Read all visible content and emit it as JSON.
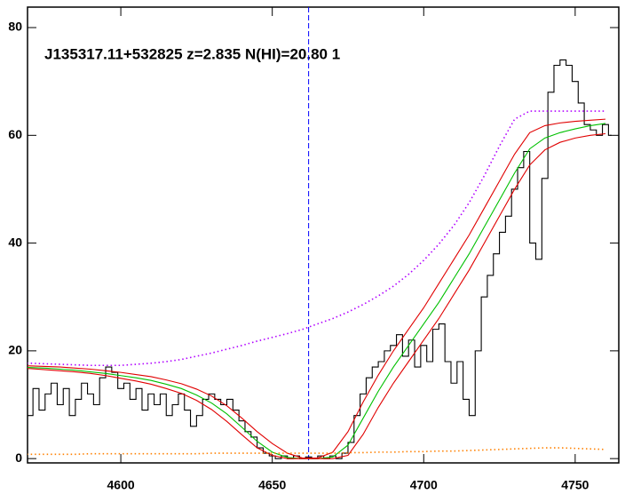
{
  "chart_data": {
    "type": "line",
    "title": "J135317.11+532825 z=2.835 N(HI)=20.80 1",
    "xlim": [
      4569.2,
      4764.4
    ],
    "ylim": [
      -0.8,
      83.8
    ],
    "xticks": [
      4600,
      4650,
      4700,
      4750
    ],
    "yticks": [
      0,
      20,
      40,
      60,
      80
    ],
    "vline": {
      "x": 4662,
      "color": "#0000ff"
    },
    "series": [
      {
        "color": "#000000",
        "style": "step",
        "x": [
          4566,
          4568,
          4570,
          4572,
          4574,
          4576,
          4578,
          4580,
          4582,
          4584,
          4586,
          4588,
          4590,
          4592,
          4594,
          4596,
          4598,
          4600,
          4602,
          4604,
          4606,
          4608,
          4610,
          4612,
          4614,
          4616,
          4618,
          4620,
          4622,
          4624,
          4626,
          4628,
          4630,
          4632,
          4634,
          4636,
          4638,
          4640,
          4642,
          4644,
          4646,
          4648,
          4650,
          4652,
          4654,
          4656,
          4658,
          4660,
          4662,
          4664,
          4666,
          4668,
          4670,
          4672,
          4674,
          4676,
          4678,
          4680,
          4682,
          4684,
          4686,
          4688,
          4690,
          4692,
          4694,
          4696,
          4698,
          4700,
          4702,
          4704,
          4706,
          4708,
          4710,
          4712,
          4714,
          4716,
          4718,
          4720,
          4722,
          4724,
          4726,
          4728,
          4730,
          4732,
          4734,
          4736,
          4738,
          4740,
          4742,
          4744,
          4746,
          4748,
          4750,
          4752,
          4754,
          4756,
          4758,
          4760,
          4762
        ],
        "values": [
          10,
          12,
          8,
          13,
          9,
          12,
          14,
          10,
          13,
          8,
          11,
          14,
          12,
          10,
          15,
          17,
          16,
          13,
          14,
          11,
          13,
          9,
          12,
          10,
          12,
          8,
          10,
          12,
          9,
          6,
          8,
          11,
          12,
          11,
          10,
          11,
          9,
          7,
          5,
          4,
          2,
          1,
          0.5,
          0,
          0.5,
          0,
          0.5,
          0,
          0.3,
          0,
          0.5,
          0,
          0.5,
          0,
          1,
          3,
          8,
          12,
          15,
          17,
          18,
          20,
          21,
          23,
          19,
          22,
          17,
          21,
          18,
          24,
          25,
          18,
          14,
          18,
          11,
          8,
          20,
          30,
          34,
          38,
          42,
          45,
          50,
          54,
          57,
          40,
          37,
          52,
          68,
          73,
          74,
          73,
          70,
          66,
          62,
          61,
          60,
          62,
          60
        ]
      },
      {
        "color": "#b000ff",
        "style": "dotted",
        "x": [
          4565,
          4570,
          4575,
          4580,
          4585,
          4590,
          4595,
          4600,
          4605,
          4610,
          4615,
          4620,
          4625,
          4630,
          4635,
          4640,
          4645,
          4650,
          4655,
          4660,
          4665,
          4670,
          4675,
          4680,
          4685,
          4690,
          4695,
          4700,
          4705,
          4710,
          4715,
          4720,
          4725,
          4730,
          4735,
          4740,
          4745,
          4750,
          4755,
          4760
        ],
        "values": [
          17.8,
          17.7,
          17.6,
          17.5,
          17.4,
          17.3,
          17.3,
          17.3,
          17.5,
          17.7,
          18.0,
          18.4,
          19.0,
          19.6,
          20.3,
          21.0,
          21.8,
          22.5,
          23.2,
          24.0,
          25.0,
          26.0,
          27.2,
          28.6,
          30.2,
          32.0,
          34.2,
          36.8,
          39.8,
          43.3,
          47.5,
          52.5,
          58,
          63,
          64.5,
          64.5,
          64.5,
          64.5,
          64.5,
          64.5
        ]
      },
      {
        "color": "#00c000",
        "style": "solid",
        "x": [
          4565,
          4570,
          4575,
          4580,
          4585,
          4590,
          4595,
          4600,
          4605,
          4610,
          4615,
          4620,
          4625,
          4630,
          4635,
          4640,
          4645,
          4650,
          4655,
          4660,
          4665,
          4670,
          4675,
          4680,
          4685,
          4690,
          4695,
          4700,
          4705,
          4710,
          4715,
          4720,
          4725,
          4730,
          4735,
          4740,
          4745,
          4750,
          4755,
          4760
        ],
        "values": [
          17.0,
          16.9,
          16.8,
          16.6,
          16.4,
          16.1,
          15.8,
          15.4,
          15.0,
          14.5,
          13.8,
          13.0,
          11.8,
          10.3,
          8.3,
          5.8,
          3.2,
          1.2,
          0.2,
          0,
          0,
          0.3,
          2.5,
          7.5,
          12.5,
          17,
          21,
          25,
          29,
          33.5,
          38,
          43,
          48,
          53,
          57.5,
          59.5,
          60.5,
          61.2,
          61.8,
          62.2
        ]
      },
      {
        "color": "#e00000",
        "style": "solid",
        "x": [
          4565,
          4570,
          4575,
          4580,
          4585,
          4590,
          4595,
          4600,
          4605,
          4610,
          4615,
          4620,
          4625,
          4630,
          4635,
          4640,
          4645,
          4650,
          4655,
          4660,
          4665,
          4670,
          4675,
          4680,
          4685,
          4690,
          4695,
          4700,
          4705,
          4710,
          4715,
          4720,
          4725,
          4730,
          4735,
          4740,
          4745,
          4750,
          4755,
          4760
        ],
        "values": [
          17.3,
          17.2,
          17.1,
          17.0,
          16.8,
          16.6,
          16.3,
          16.0,
          15.6,
          15.2,
          14.6,
          13.9,
          12.9,
          11.6,
          9.8,
          7.5,
          5.0,
          2.8,
          1.0,
          0.1,
          0.1,
          1.2,
          5.0,
          10.5,
          15.5,
          20,
          24,
          28,
          32.5,
          37,
          41.5,
          46.5,
          51.5,
          56.5,
          60.5,
          61.8,
          62.3,
          62.6,
          62.8,
          63
        ]
      },
      {
        "color": "#e00000",
        "style": "solid",
        "x": [
          4565,
          4570,
          4575,
          4580,
          4585,
          4590,
          4595,
          4600,
          4605,
          4610,
          4615,
          4620,
          4625,
          4630,
          4635,
          4640,
          4645,
          4650,
          4655,
          4660,
          4665,
          4670,
          4675,
          4680,
          4685,
          4690,
          4695,
          4700,
          4705,
          4710,
          4715,
          4720,
          4725,
          4730,
          4735,
          4740,
          4745,
          4750,
          4755,
          4760
        ],
        "values": [
          16.8,
          16.7,
          16.5,
          16.3,
          16.1,
          15.8,
          15.4,
          14.9,
          14.4,
          13.8,
          13.0,
          12.1,
          10.8,
          9.1,
          6.9,
          4.4,
          2.0,
          0.6,
          0,
          0,
          0,
          0,
          0.6,
          4.5,
          9.5,
          14,
          18,
          22,
          26,
          30.5,
          35,
          40,
          45,
          50,
          54.5,
          57.3,
          58.7,
          59.5,
          60,
          60.3
        ]
      },
      {
        "color": "#ff8000",
        "style": "dotted",
        "x": [
          4565,
          4570,
          4575,
          4580,
          4585,
          4590,
          4595,
          4600,
          4605,
          4610,
          4615,
          4620,
          4625,
          4630,
          4635,
          4640,
          4645,
          4650,
          4655,
          4660,
          4665,
          4670,
          4675,
          4680,
          4685,
          4690,
          4695,
          4700,
          4705,
          4710,
          4715,
          4720,
          4725,
          4730,
          4735,
          4740,
          4745,
          4750,
          4755,
          4760
        ],
        "values": [
          0.8,
          0.8,
          0.8,
          0.8,
          0.8,
          0.9,
          0.9,
          0.9,
          0.9,
          0.9,
          0.9,
          0.9,
          0.9,
          1,
          1,
          1,
          1,
          1,
          1,
          1,
          1,
          1,
          1.1,
          1.1,
          1.2,
          1.2,
          1.3,
          1.3,
          1.4,
          1.4,
          1.5,
          1.6,
          1.7,
          1.8,
          1.9,
          2.0,
          2.0,
          1.9,
          1.8,
          1.7
        ]
      }
    ]
  }
}
